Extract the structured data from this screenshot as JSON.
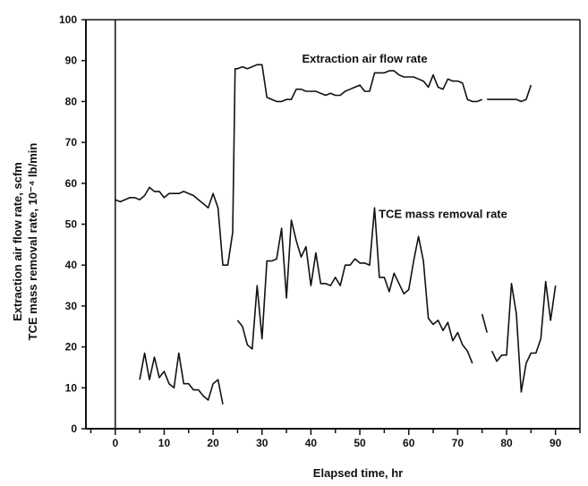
{
  "chart_data": {
    "type": "line",
    "title": "",
    "xlabel": "Elapsed time, hr",
    "ylabel_lines": [
      "Extraction air flow rate, scfm",
      "TCE mass removal rate, 10⁻⁴ lb/min"
    ],
    "xlim": [
      -6,
      95
    ],
    "ylim": [
      0,
      100
    ],
    "xticks": [
      0,
      10,
      20,
      30,
      40,
      50,
      60,
      70,
      80,
      90
    ],
    "yticks": [
      0,
      10,
      20,
      30,
      40,
      50,
      60,
      70,
      80,
      90,
      100
    ],
    "grid": false,
    "legend": "none",
    "annotations": [
      {
        "text": "Extraction air flow rate",
        "x": 51,
        "y": 89.5
      },
      {
        "text": "TCE mass removal rate",
        "x": 67,
        "y": 51.5
      }
    ],
    "series": [
      {
        "id": "air",
        "color": "#111111",
        "segments": [
          [
            [
              0,
              56
            ],
            [
              1,
              55.5
            ],
            [
              2,
              56
            ],
            [
              3,
              56.5
            ],
            [
              4,
              56.5
            ],
            [
              5,
              56
            ],
            [
              6,
              57
            ],
            [
              7,
              59
            ],
            [
              8,
              58
            ],
            [
              9,
              58
            ],
            [
              10,
              56.5
            ],
            [
              11,
              57.5
            ],
            [
              12,
              57.5
            ],
            [
              13,
              57.5
            ],
            [
              14,
              58
            ],
            [
              15,
              57.5
            ],
            [
              16,
              57
            ],
            [
              17,
              56
            ],
            [
              18,
              55
            ],
            [
              19,
              54
            ],
            [
              20,
              57.5
            ],
            [
              21,
              54
            ],
            [
              22,
              40
            ],
            [
              23,
              40
            ],
            [
              24,
              48
            ],
            [
              24.5,
              88
            ],
            [
              25,
              88
            ],
            [
              26,
              88.5
            ],
            [
              27,
              88
            ],
            [
              28,
              88.5
            ],
            [
              29,
              89
            ],
            [
              30,
              89
            ],
            [
              31,
              81
            ],
            [
              32,
              80.5
            ],
            [
              33,
              80
            ],
            [
              34,
              80
            ],
            [
              35,
              80.5
            ],
            [
              36,
              80.5
            ],
            [
              37,
              83
            ],
            [
              38,
              83
            ],
            [
              39,
              82.5
            ],
            [
              40,
              82.5
            ],
            [
              41,
              82.5
            ],
            [
              42,
              82
            ],
            [
              43,
              81.5
            ],
            [
              44,
              82
            ],
            [
              45,
              81.5
            ],
            [
              46,
              81.5
            ],
            [
              47,
              82.5
            ],
            [
              48,
              83
            ],
            [
              49,
              83.5
            ],
            [
              50,
              84
            ],
            [
              51,
              82.5
            ],
            [
              52,
              82.5
            ],
            [
              53,
              87
            ],
            [
              54,
              87
            ],
            [
              55,
              87
            ],
            [
              56,
              87.5
            ],
            [
              57,
              87.5
            ],
            [
              58,
              86.5
            ],
            [
              59,
              86
            ],
            [
              60,
              86
            ],
            [
              61,
              86
            ],
            [
              62,
              85.5
            ],
            [
              63,
              85
            ],
            [
              64,
              83.5
            ],
            [
              65,
              86.5
            ],
            [
              66,
              83.5
            ],
            [
              67,
              83
            ],
            [
              68,
              85.5
            ],
            [
              69,
              85
            ],
            [
              70,
              85
            ],
            [
              71,
              84.5
            ],
            [
              72,
              80.5
            ],
            [
              73,
              80
            ],
            [
              74,
              80
            ],
            [
              75,
              80.5
            ]
          ],
          [
            [
              76,
              80.5
            ],
            [
              77,
              80.5
            ],
            [
              78,
              80.5
            ],
            [
              79,
              80.5
            ],
            [
              80,
              80.5
            ],
            [
              81,
              80.5
            ],
            [
              82,
              80.5
            ],
            [
              83,
              80
            ],
            [
              84,
              80.5
            ],
            [
              85,
              84
            ]
          ]
        ]
      },
      {
        "id": "tce",
        "color": "#111111",
        "segments": [
          [
            [
              5,
              12
            ],
            [
              6,
              18.5
            ],
            [
              7,
              12
            ],
            [
              8,
              17.5
            ],
            [
              9,
              12.5
            ],
            [
              10,
              14
            ],
            [
              11,
              11
            ],
            [
              12,
              10
            ],
            [
              13,
              18.5
            ],
            [
              14,
              11
            ],
            [
              15,
              11
            ],
            [
              16,
              9.5
            ],
            [
              17,
              9.5
            ],
            [
              18,
              8
            ],
            [
              19,
              7
            ],
            [
              20,
              11
            ],
            [
              21,
              12
            ],
            [
              22,
              6
            ]
          ],
          [
            [
              25,
              26.5
            ],
            [
              26,
              25
            ],
            [
              27,
              20.5
            ],
            [
              28,
              19.5
            ],
            [
              29,
              35
            ],
            [
              30,
              22
            ],
            [
              31,
              41
            ],
            [
              32,
              41
            ],
            [
              33,
              41.5
            ],
            [
              34,
              49
            ],
            [
              35,
              32
            ],
            [
              36,
              51
            ],
            [
              37,
              46
            ],
            [
              38,
              42
            ],
            [
              39,
              44.5
            ],
            [
              40,
              35
            ],
            [
              41,
              43
            ],
            [
              42,
              35.5
            ],
            [
              43,
              35.5
            ],
            [
              44,
              35
            ],
            [
              45,
              37
            ],
            [
              46,
              35
            ],
            [
              47,
              40
            ],
            [
              48,
              40
            ],
            [
              49,
              41.5
            ],
            [
              50,
              40.5
            ],
            [
              51,
              40.5
            ],
            [
              52,
              40
            ],
            [
              53,
              54
            ],
            [
              54,
              37
            ],
            [
              55,
              37
            ],
            [
              56,
              33.5
            ],
            [
              57,
              38
            ],
            [
              58,
              35.5
            ],
            [
              59,
              33
            ],
            [
              60,
              34
            ],
            [
              61,
              41
            ],
            [
              62,
              47
            ],
            [
              63,
              41
            ],
            [
              64,
              27
            ],
            [
              65,
              25.5
            ],
            [
              66,
              26.5
            ],
            [
              67,
              24
            ],
            [
              68,
              26
            ],
            [
              69,
              21.5
            ],
            [
              70,
              23.5
            ],
            [
              71,
              20.5
            ],
            [
              72,
              19
            ],
            [
              73,
              16
            ]
          ],
          [
            [
              75,
              28
            ],
            [
              76,
              23.5
            ]
          ],
          [
            [
              77,
              19
            ],
            [
              78,
              16.5
            ],
            [
              79,
              18
            ],
            [
              80,
              18
            ],
            [
              81,
              35.5
            ],
            [
              82,
              28
            ],
            [
              83,
              9
            ],
            [
              84,
              16
            ],
            [
              85,
              18.5
            ],
            [
              86,
              18.5
            ],
            [
              87,
              22
            ],
            [
              88,
              36
            ],
            [
              89,
              26.5
            ],
            [
              90,
              35
            ]
          ]
        ]
      }
    ]
  }
}
